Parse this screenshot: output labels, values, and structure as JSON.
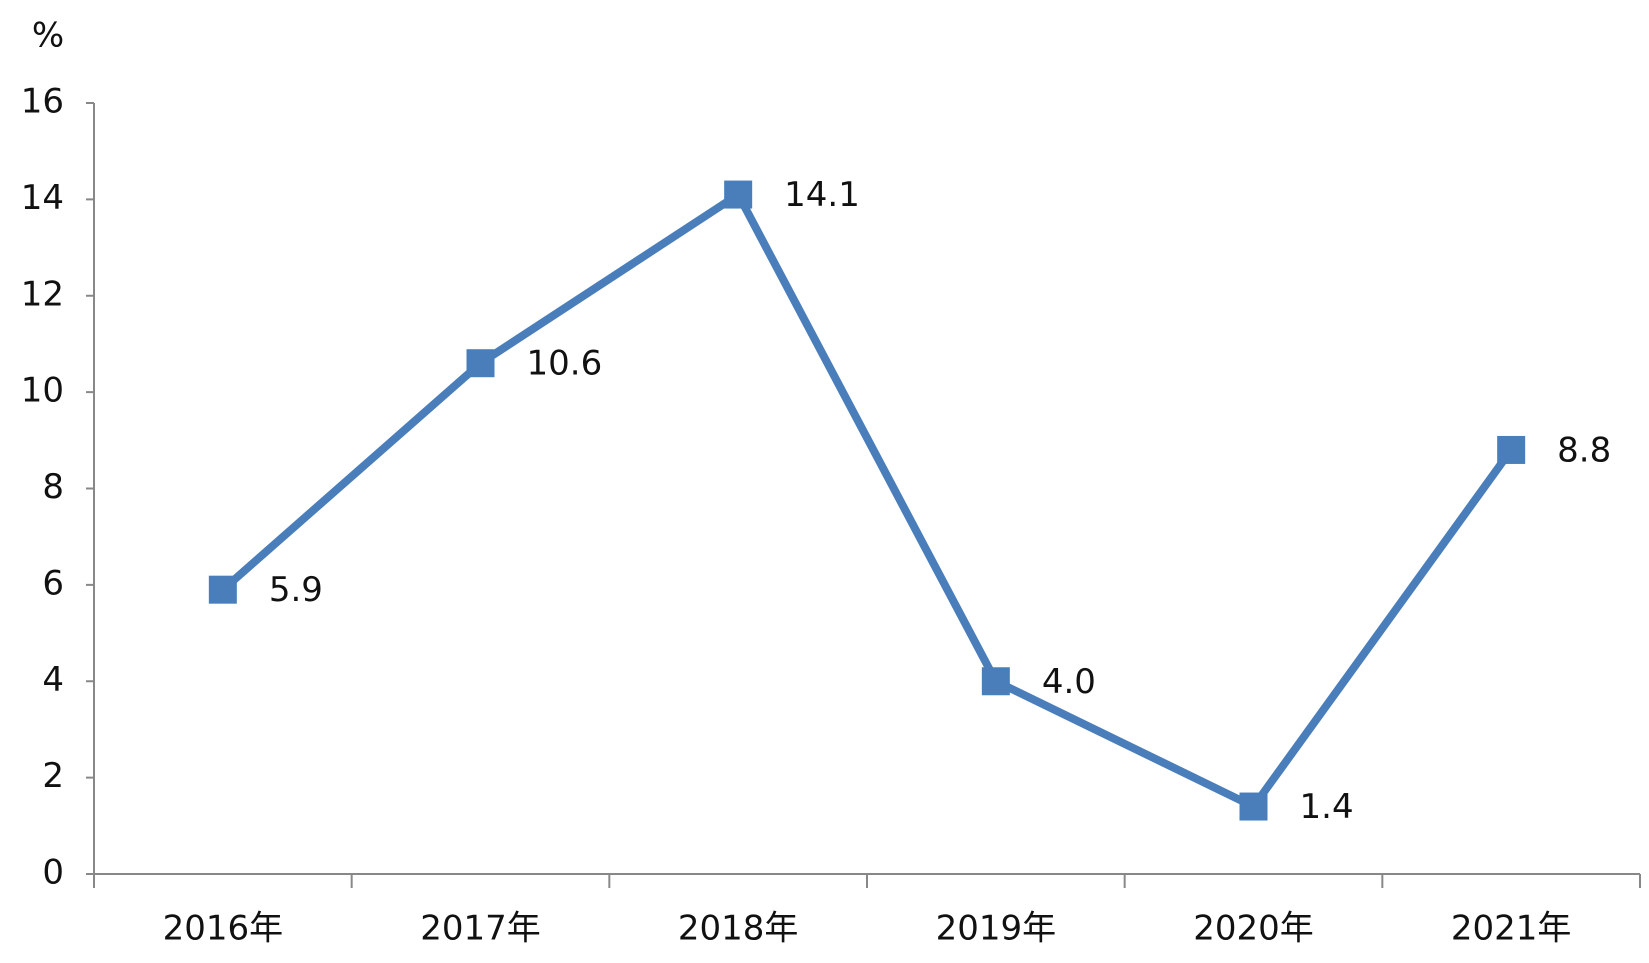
{
  "chart_data": {
    "type": "line",
    "y_label": "%",
    "categories": [
      "2016年",
      "2017年",
      "2018年",
      "2019年",
      "2020年",
      "2021年"
    ],
    "series": [
      {
        "color": "#4a7ebb",
        "values": [
          5.9,
          10.6,
          14.1,
          4.0,
          1.4,
          8.8
        ],
        "value_labels": [
          "5.9",
          "10.6",
          "14.1",
          "4.0",
          "1.4",
          "8.8"
        ]
      }
    ],
    "ylim": [
      0,
      16
    ],
    "yticks": [
      0,
      2,
      4,
      6,
      8,
      10,
      12,
      14,
      16
    ],
    "grid": false
  }
}
